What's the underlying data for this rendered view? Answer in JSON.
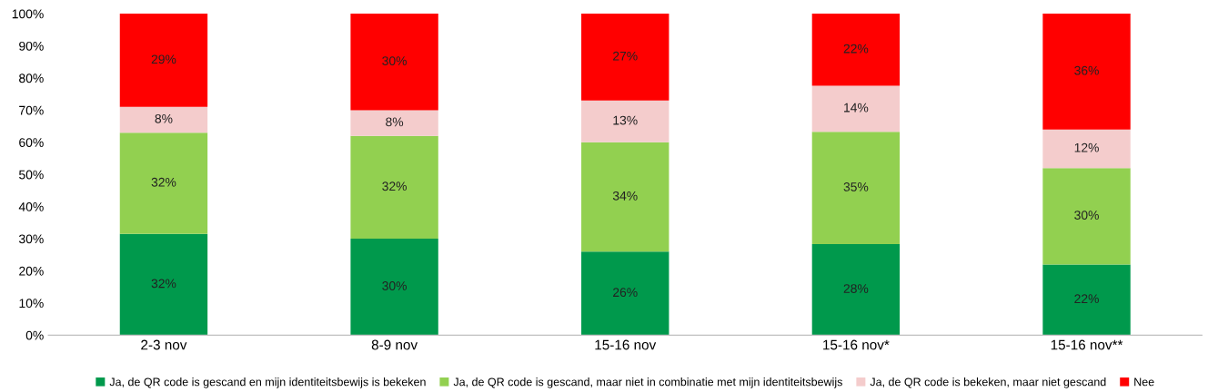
{
  "chart_data": {
    "type": "bar",
    "stacked": true,
    "categories": [
      "2-3 nov",
      "8-9 nov",
      "15-16 nov",
      "15-16 nov*",
      "15-16 nov**"
    ],
    "series": [
      {
        "name": "Ja, de QR code is gescand en mijn identiteitsbewijs is bekeken",
        "color": "#00994c",
        "values": [
          31.5,
          30,
          26,
          28.3,
          22
        ],
        "value_labels": [
          "32%",
          "30%",
          "26%",
          "28%",
          "22%"
        ]
      },
      {
        "name": "Ja, de QR code is gescand, maar niet in combinatie met mijn identiteitsbewijs",
        "color": "#92d050",
        "values": [
          31.5,
          32,
          34,
          35,
          30
        ],
        "value_labels": [
          "32%",
          "32%",
          "34%",
          "35%",
          "30%"
        ]
      },
      {
        "name": "Ja, de QR code is bekeken, maar niet gescand",
        "color": "#f4cccc",
        "values": [
          8,
          8,
          13,
          14.3,
          12
        ],
        "value_labels": [
          "8%",
          "8%",
          "13%",
          "14%",
          "12%"
        ]
      },
      {
        "name": "Nee",
        "color": "#ff0000",
        "values": [
          29,
          30,
          27,
          22.4,
          36
        ],
        "value_labels": [
          "29%",
          "30%",
          "27%",
          "22%",
          "36%"
        ]
      }
    ],
    "ylim": [
      0,
      100
    ],
    "yticks": [
      {
        "value": 0,
        "label": "0%"
      },
      {
        "value": 10,
        "label": "10%"
      },
      {
        "value": 20,
        "label": "20%"
      },
      {
        "value": 30,
        "label": "30%"
      },
      {
        "value": 40,
        "label": "40%"
      },
      {
        "value": 50,
        "label": "50%"
      },
      {
        "value": 60,
        "label": "60%"
      },
      {
        "value": 70,
        "label": "70%"
      },
      {
        "value": 80,
        "label": "80%"
      },
      {
        "value": 90,
        "label": "90%"
      },
      {
        "value": 100,
        "label": "100%"
      }
    ],
    "grid": false,
    "legend": "bottom"
  }
}
